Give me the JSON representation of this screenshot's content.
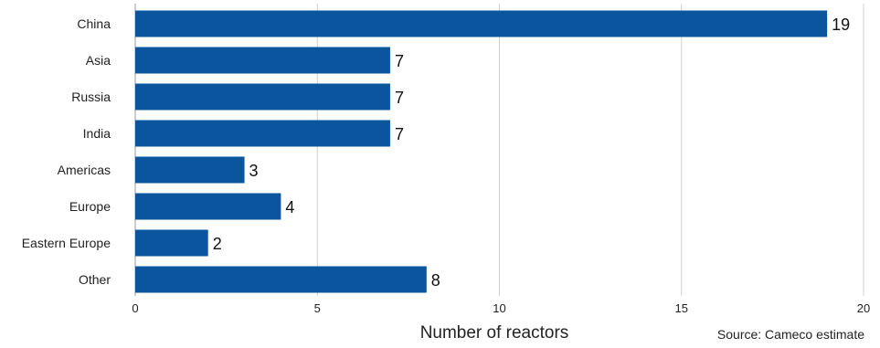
{
  "chart_data": {
    "type": "bar",
    "orientation": "horizontal",
    "categories": [
      "China",
      "Asia",
      "Russia",
      "India",
      "Americas",
      "Europe",
      "Eastern Europe",
      "Other"
    ],
    "values": [
      19,
      7,
      7,
      7,
      3,
      4,
      2,
      8
    ],
    "xlabel": "Number of reactors",
    "ylabel": "",
    "xlim": [
      0,
      20
    ],
    "xticks": [
      0,
      5,
      10,
      15,
      20
    ],
    "grid": "vertical",
    "bar_color": "#0a559d",
    "source": "Source: Cameco estimate"
  }
}
